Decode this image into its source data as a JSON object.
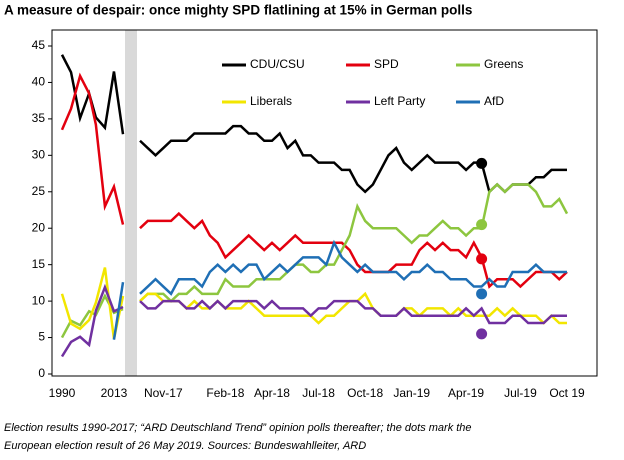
{
  "chart_data": {
    "type": "line",
    "title": "A measure of despair: once mighty SPD flatlining at 15% in German polls",
    "note": [
      "Election results 1990-2017; “ARD Deutschland Trend” opinion polls thereafter; the dots mark the",
      "European election result of 26 May 2019. Sources: Bundeswahlleiter, ARD"
    ],
    "ylim": [
      0,
      45
    ],
    "yticks": [
      0,
      5,
      10,
      15,
      20,
      25,
      30,
      35,
      40,
      45
    ],
    "elections": {
      "x": [
        1990,
        1994,
        1998,
        2002,
        2005,
        2009,
        2013,
        2017
      ],
      "xlim": [
        1990,
        2017
      ],
      "xticks": [
        1990,
        2013
      ]
    },
    "categories": [
      null,
      null,
      null,
      "Nov-17",
      null,
      null,
      null,
      null,
      null,
      null,
      null,
      "Feb-18",
      null,
      null,
      null,
      null,
      null,
      "Apr-18",
      null,
      null,
      null,
      null,
      null,
      "Jul-18",
      null,
      null,
      null,
      null,
      null,
      "Oct-18",
      null,
      null,
      null,
      null,
      null,
      "Jan-19",
      null,
      null,
      null,
      null,
      null,
      null,
      "Apr-19",
      null,
      null,
      null,
      null,
      null,
      null,
      "Jul-19",
      null,
      null,
      null,
      null,
      null,
      "Oct 19"
    ],
    "dot_at": 44,
    "series": [
      {
        "name": "CDU/CSU",
        "color": "#000000",
        "election_values": [
          43.8,
          41.4,
          35.1,
          38.5,
          35.2,
          33.8,
          41.5,
          32.9
        ],
        "values": [
          32,
          31,
          30,
          31,
          32,
          32,
          32,
          33,
          33,
          33,
          33,
          33,
          34,
          34,
          33,
          33,
          32,
          32,
          33,
          31,
          32,
          30,
          30,
          29,
          29,
          29,
          28,
          28,
          26,
          25,
          26,
          28,
          30,
          31,
          29,
          28,
          29,
          30,
          29,
          29,
          29,
          29,
          28,
          29,
          29,
          25,
          26,
          25,
          26,
          26,
          26,
          27,
          27,
          28,
          28,
          28
        ],
        "dot": 28.9
      },
      {
        "name": "SPD",
        "color": "#e3000f",
        "election_values": [
          33.5,
          36.4,
          40.9,
          38.5,
          34.2,
          23.0,
          25.7,
          20.5
        ],
        "values": [
          20,
          21,
          21,
          21,
          21,
          22,
          21,
          20,
          21,
          19,
          18,
          16,
          17,
          18,
          19,
          18,
          17,
          18,
          17,
          18,
          19,
          18,
          18,
          18,
          18,
          18,
          18,
          17,
          15,
          14,
          14,
          14,
          14,
          15,
          15,
          15,
          17,
          18,
          17,
          18,
          17,
          17,
          16,
          18,
          16,
          12,
          13,
          13,
          13,
          12,
          13,
          14,
          14,
          14,
          13,
          14
        ],
        "dot": 15.8
      },
      {
        "name": "Greens",
        "color": "#8dc63f",
        "election_values": [
          5.0,
          7.3,
          6.7,
          8.6,
          8.1,
          10.7,
          8.4,
          8.9
        ],
        "values": [
          10,
          11,
          11,
          11,
          10,
          11,
          11,
          12,
          11,
          11,
          11,
          13,
          12,
          12,
          12,
          13,
          13,
          13,
          13,
          14,
          15,
          15,
          14,
          14,
          15,
          15,
          17,
          19,
          23,
          21,
          20,
          20,
          20,
          20,
          19,
          18,
          19,
          19,
          20,
          21,
          20,
          20,
          19,
          20,
          20,
          25,
          26,
          25,
          26,
          26,
          26,
          25,
          23,
          23,
          24,
          22
        ],
        "dot": 20.5
      },
      {
        "name": "Liberals",
        "color": "#f2e600",
        "election_values": [
          11.0,
          6.9,
          6.2,
          7.4,
          9.8,
          14.6,
          4.8,
          10.7
        ],
        "values": [
          10,
          11,
          11,
          10,
          10,
          10,
          9,
          10,
          9,
          9,
          10,
          9,
          9,
          9,
          10,
          9,
          8,
          8,
          8,
          8,
          8,
          8,
          8,
          7,
          8,
          8,
          9,
          10,
          10,
          11,
          9,
          8,
          8,
          8,
          9,
          9,
          8,
          9,
          9,
          9,
          8,
          9,
          8,
          8,
          8,
          8,
          9,
          8,
          9,
          8,
          8,
          8,
          7,
          8,
          7,
          7
        ]
      },
      {
        "name": "Left Party",
        "color": "#7030a0",
        "election_values": [
          2.4,
          4.4,
          5.1,
          4.0,
          8.7,
          11.9,
          8.6,
          9.2
        ],
        "values": [
          10,
          9,
          9,
          10,
          10,
          10,
          9,
          9,
          10,
          9,
          10,
          9,
          10,
          10,
          10,
          10,
          9,
          10,
          9,
          9,
          9,
          9,
          8,
          9,
          9,
          10,
          10,
          10,
          10,
          9,
          9,
          8,
          8,
          8,
          9,
          8,
          8,
          8,
          8,
          8,
          8,
          8,
          9,
          8,
          9,
          7,
          7,
          7,
          8,
          8,
          7,
          7,
          7,
          8,
          8,
          8
        ],
        "dot": 5.5
      },
      {
        "name": "AfD",
        "color": "#1f6fb5",
        "election_values": [
          null,
          null,
          null,
          null,
          null,
          null,
          4.7,
          12.6
        ],
        "values": [
          11,
          12,
          13,
          12,
          11,
          13,
          13,
          13,
          12,
          14,
          15,
          14,
          15,
          14,
          15,
          15,
          13,
          14,
          15,
          14,
          15,
          16,
          16,
          16,
          15,
          18,
          16,
          15,
          14,
          15,
          14,
          14,
          14,
          14,
          13,
          14,
          14,
          15,
          14,
          14,
          13,
          13,
          13,
          12,
          12,
          13,
          12,
          12,
          14,
          14,
          14,
          15,
          14,
          14,
          14,
          14
        ],
        "dot": 11
      }
    ]
  }
}
